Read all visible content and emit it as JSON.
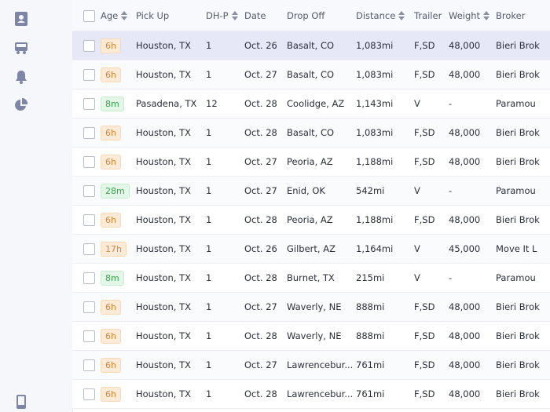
{
  "table": {
    "columns": [
      "Age",
      "Pick Up",
      "DH-P",
      "Date",
      "Drop Off",
      "Distance",
      "Trailer",
      "Weight",
      "Broker"
    ],
    "sortable": [
      true,
      false,
      true,
      false,
      false,
      true,
      false,
      true,
      false
    ],
    "rows": [
      [
        "6h",
        "Houston, TX",
        "1",
        "Oct. 26",
        "Basalt, CO",
        "1,083mi",
        "F,SD",
        "48,000",
        "Bieri Brok"
      ],
      [
        "6h",
        "Houston, TX",
        "1",
        "Oct. 27",
        "Basalt, CO",
        "1,083mi",
        "F,SD",
        "48,000",
        "Bieri Brok"
      ],
      [
        "8m",
        "Pasadena, TX",
        "12",
        "Oct. 28",
        "Coolidge, AZ",
        "1,143mi",
        "V",
        "-",
        "Paramou"
      ],
      [
        "6h",
        "Houston, TX",
        "1",
        "Oct. 28",
        "Basalt, CO",
        "1,083mi",
        "F,SD",
        "48,000",
        "Bieri Brok"
      ],
      [
        "6h",
        "Houston, TX",
        "1",
        "Oct. 27",
        "Peoria, AZ",
        "1,188mi",
        "F,SD",
        "48,000",
        "Bieri Brok"
      ],
      [
        "28m",
        "Houston, TX",
        "1",
        "Oct. 27",
        "Enid, OK",
        "542mi",
        "V",
        "-",
        "Paramou"
      ],
      [
        "6h",
        "Houston, TX",
        "1",
        "Oct. 28",
        "Peoria, AZ",
        "1,188mi",
        "F,SD",
        "48,000",
        "Bieri Brok"
      ],
      [
        "17h",
        "Houston, TX",
        "1",
        "Oct. 26",
        "Gilbert, AZ",
        "1,164mi",
        "V",
        "45,000",
        "Move It L"
      ],
      [
        "8m",
        "Houston, TX",
        "1",
        "Oct. 28",
        "Burnet, TX",
        "215mi",
        "V",
        "-",
        "Paramou"
      ],
      [
        "6h",
        "Houston, TX",
        "1",
        "Oct. 27",
        "Waverly, NE",
        "888mi",
        "F,SD",
        "48,000",
        "Bieri Brok"
      ],
      [
        "6h",
        "Houston, TX",
        "1",
        "Oct. 28",
        "Waverly, NE",
        "888mi",
        "F,SD",
        "48,000",
        "Bieri Brok"
      ],
      [
        "6h",
        "Houston, TX",
        "1",
        "Oct. 27",
        "Lawrencebur...",
        "761mi",
        "F,SD",
        "48,000",
        "Bieri Brok"
      ],
      [
        "6h",
        "Houston, TX",
        "1",
        "Oct. 28",
        "Lawrencebur...",
        "761mi",
        "F,SD",
        "48,000",
        "Bieri Brok"
      ]
    ],
    "selected_row": 0
  }
}
